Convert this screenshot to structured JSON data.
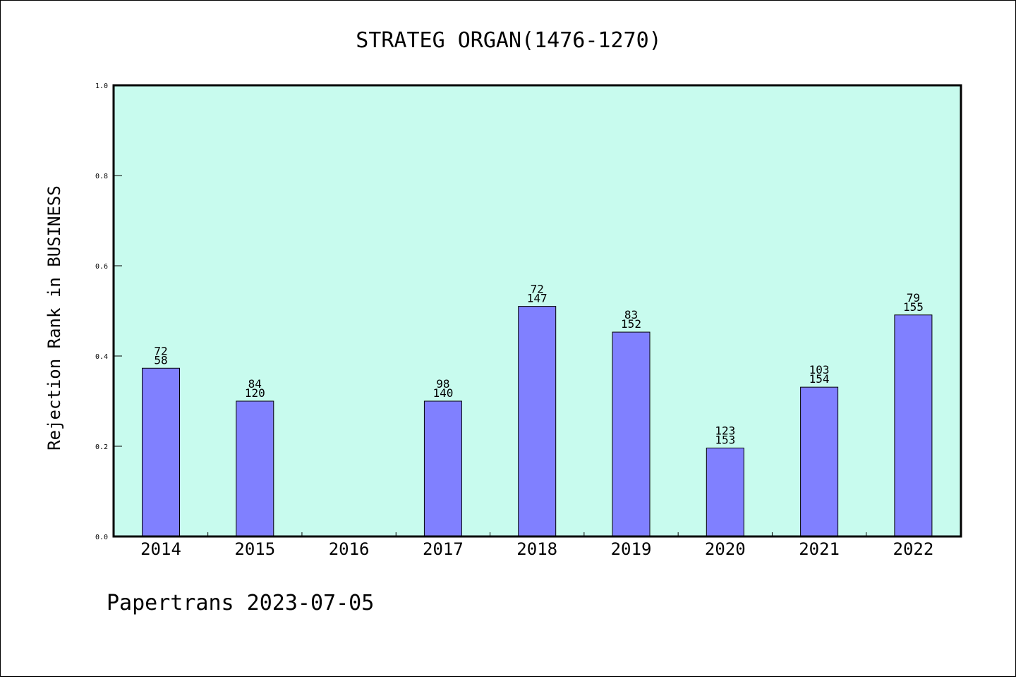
{
  "chart_data": {
    "type": "bar",
    "title": "STRATEG ORGAN(1476-1270)",
    "xlabel": "",
    "ylabel": "Rejection Rank in BUSINESS",
    "ylim": [
      0,
      1.0
    ],
    "yticks": [
      "0.0",
      "0.2",
      "0.4",
      "0.6",
      "0.8",
      "1.0"
    ],
    "categories": [
      "2014",
      "2015",
      "2016",
      "2017",
      "2018",
      "2019",
      "2020",
      "2021",
      "2022"
    ],
    "values": [
      0.373,
      0.3,
      0,
      0.3,
      0.51,
      0.453,
      0.196,
      0.331,
      0.491
    ],
    "labels_top": [
      "72",
      "84",
      "",
      "98",
      "72",
      "83",
      "123",
      "103",
      "79"
    ],
    "labels_bottom": [
      "58",
      "120",
      "",
      "140",
      "147",
      "152",
      "153",
      "154",
      "155"
    ],
    "grid": false,
    "legend": "none",
    "colors": {
      "plot_background": "#c8fbee",
      "bar_fill": "#8080ff",
      "bar_stroke": "#000000"
    }
  },
  "footer": "Papertrans 2023-07-05"
}
